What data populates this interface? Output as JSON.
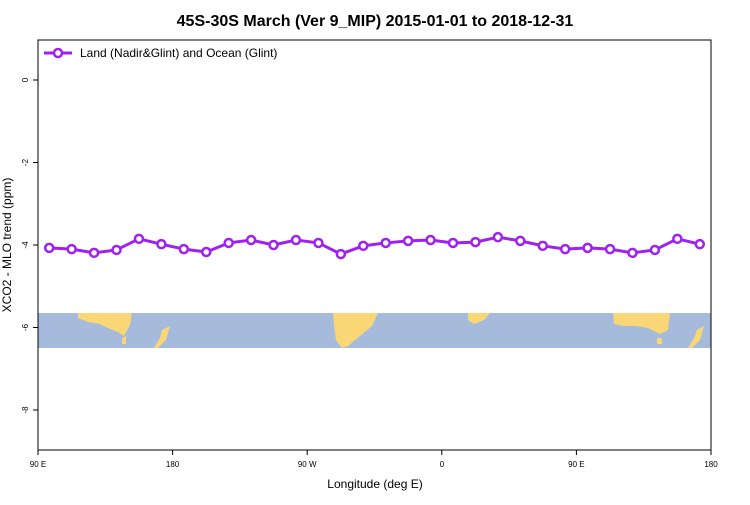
{
  "chart_data": {
    "type": "line",
    "title": "45S-30S March (Ver 9_MIP)   2015-01-01 to 2018-12-31",
    "x_label": "Longitude (deg E)",
    "y_label": "XCO2 - MLO trend (ppm)",
    "x": [
      97.5,
      112.5,
      127.5,
      142.5,
      157.5,
      172.5,
      187.5,
      202.5,
      217.5,
      232.5,
      247.5,
      262.5,
      277.5,
      292.5,
      307.5,
      322.5,
      337.5,
      352.5,
      367.5,
      382.5,
      397.5,
      412.5,
      427.5,
      442.5,
      457.5,
      472.5,
      487.5,
      502.5,
      517.5,
      532.5
    ],
    "series": [
      {
        "name": "Land (Nadir&Glint) and Ocean (Glint)",
        "color": "#a020f0",
        "values": [
          -4.07,
          -4.1,
          -4.19,
          -4.12,
          -3.85,
          -3.98,
          -4.1,
          -4.17,
          -3.95,
          -3.88,
          -4.0,
          -3.88,
          -3.95,
          -4.22,
          -4.02,
          -3.95,
          -3.9,
          -3.88,
          -3.95,
          -3.93,
          -3.81,
          -3.9,
          -4.02,
          -4.1,
          -4.07,
          -4.1,
          -4.19,
          -4.12,
          -3.85,
          -3.98
        ]
      }
    ],
    "xlim": [
      90,
      540
    ],
    "xticks": [
      {
        "value": 90,
        "label": "90 E"
      },
      180,
      {
        "value": 270,
        "label": "90 W"
      },
      {
        "value": 360,
        "label": "0"
      },
      {
        "value": 450,
        "label": "90 E"
      },
      {
        "value": 540,
        "label": "180"
      }
    ],
    "ylim": [
      -8.97,
      0.97
    ],
    "yticks": [
      0,
      -2,
      -4,
      -6,
      -8
    ],
    "grid": false,
    "legend": "top-left"
  }
}
